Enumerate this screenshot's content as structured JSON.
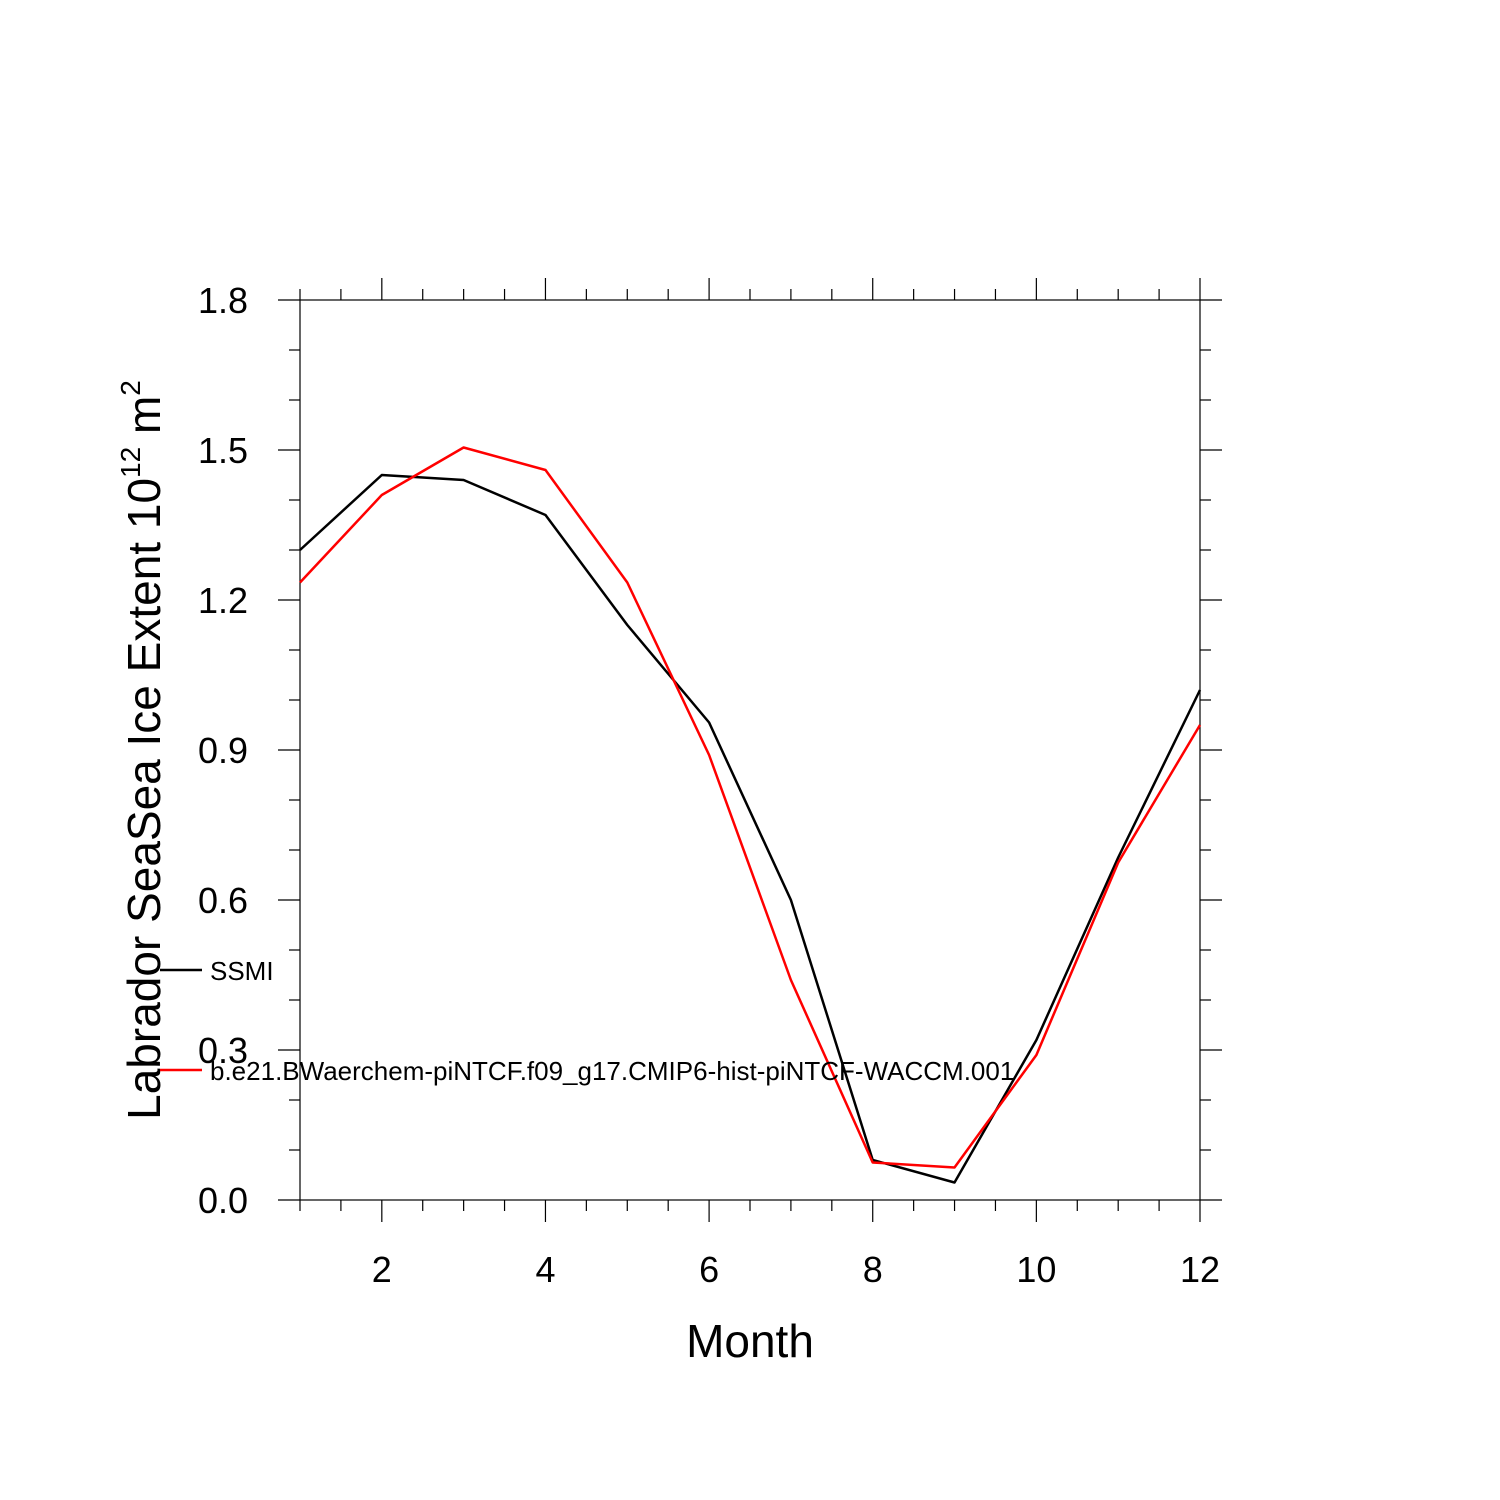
{
  "chart_data": {
    "type": "line",
    "title": "",
    "xlabel": "Month",
    "ylabel": {
      "text": "Labrador SeaSea Ice Extent 10",
      "exponent": "12",
      "unit": " m",
      "unit_exponent": "2"
    },
    "xlim": [
      1,
      12
    ],
    "ylim": [
      0.0,
      1.8
    ],
    "x_ticks": [
      2,
      4,
      6,
      8,
      10,
      12
    ],
    "y_ticks": [
      "0.0",
      "0.3",
      "0.6",
      "0.9",
      "1.2",
      "1.5",
      "1.8"
    ],
    "grid": false,
    "legend_position": "inside-left",
    "x": [
      1,
      2,
      3,
      4,
      5,
      6,
      7,
      8,
      9,
      10,
      11,
      12
    ],
    "series": [
      {
        "name": "SSMI",
        "color": "#000000",
        "values": [
          1.3,
          1.45,
          1.44,
          1.37,
          1.15,
          0.955,
          0.6,
          0.08,
          0.035,
          0.32,
          0.685,
          1.02
        ]
      },
      {
        "name": "b.e21.BWaerchem-piNTCF.f09_g17.CMIP6-hist-piNTCF-WACCM.001",
        "color": "#ff0000",
        "values": [
          1.235,
          1.41,
          1.505,
          1.46,
          1.235,
          0.89,
          0.44,
          0.075,
          0.065,
          0.29,
          0.675,
          0.95
        ]
      }
    ]
  }
}
